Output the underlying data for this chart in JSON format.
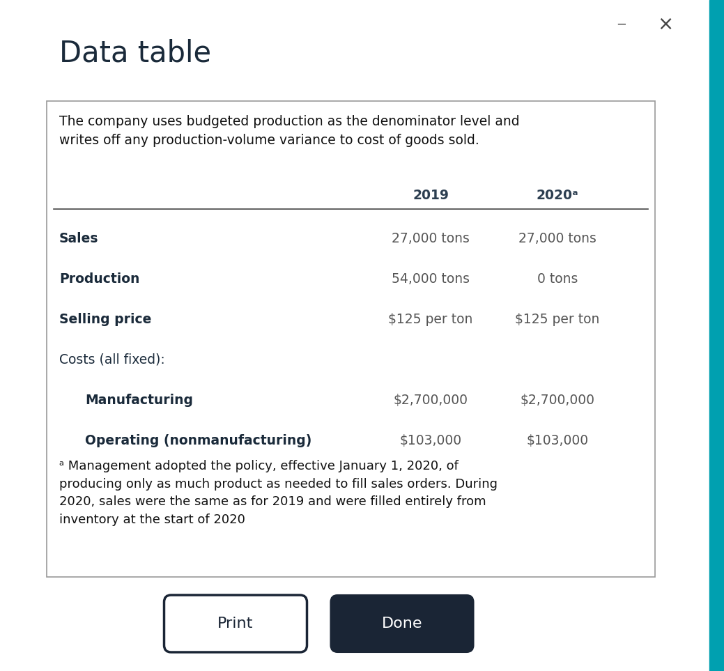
{
  "title": "Data table",
  "background_color": "#ffffff",
  "dialog_bg": "#ffffff",
  "intro_text": "The company uses budgeted production as the denominator level and\nwrites off any production-volume variance to cost of goods sold.",
  "col_headers": [
    "2019",
    "2020ᵃ"
  ],
  "rows": [
    {
      "label": "Sales",
      "bold": true,
      "indent": false,
      "val2019": "27,000 tons",
      "val2020": "27,000 tons"
    },
    {
      "label": "Production",
      "bold": true,
      "indent": false,
      "val2019": "54,000 tons",
      "val2020": "0 tons"
    },
    {
      "label": "Selling price",
      "bold": true,
      "indent": false,
      "val2019": "$125 per ton",
      "val2020": "$125 per ton"
    },
    {
      "label": "Costs (all fixed):",
      "bold": false,
      "indent": false,
      "val2019": "",
      "val2020": ""
    },
    {
      "label": "Manufacturing",
      "bold": true,
      "indent": true,
      "val2019": "$2,700,000",
      "val2020": "$2,700,000"
    },
    {
      "label": "Operating (nonmanufacturing)",
      "bold": true,
      "indent": true,
      "val2019": "$103,000",
      "val2020": "$103,000"
    }
  ],
  "footnote": "ᵃ Management adopted the policy, effective January 1, 2020, of\nproducing only as much product as needed to fill sales orders. During\n2020, sales were the same as for 2019 and were filled entirely from\ninventory at the start of 2020",
  "btn_print_text": "Print",
  "btn_done_text": "Done",
  "title_color": "#1a2a3a",
  "header_color": "#2c3e50",
  "cell_color": "#555555",
  "label_color": "#1a2a3a",
  "border_color": "#999999",
  "line_color": "#444444",
  "teal_color": "#00a0b0",
  "btn_dark_color": "#1a2535",
  "minimize_color": "#555555",
  "x_color": "#444444"
}
